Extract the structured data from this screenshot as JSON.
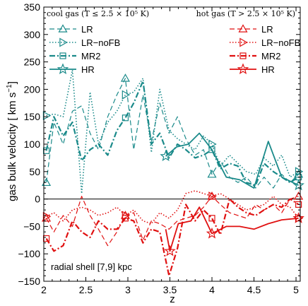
{
  "chart_data": {
    "type": "line",
    "xlabel": "z",
    "ylabel": "gas bulk velocity [ km s",
    "ylabel_sup": "−1",
    "ylabel_end": "]",
    "xlim": [
      2.0,
      5.05
    ],
    "ylim": [
      -150,
      350
    ],
    "xticks": [
      2,
      2.5,
      3,
      3.5,
      4,
      4.5,
      5
    ],
    "xtick_labels": [
      "2",
      "2.5",
      "3",
      "3.5",
      "4",
      "4.5",
      "5"
    ],
    "yticks": [
      -150,
      -100,
      -50,
      0,
      50,
      100,
      150,
      200,
      250,
      300,
      350
    ],
    "ytick_labels": [
      "−150",
      "−100",
      "−50",
      "0",
      "50",
      "100",
      "150",
      "200",
      "250",
      "300",
      "350"
    ],
    "zero_line": 0,
    "legend_cool_title": "cool gas (T ≤ 2.5 × 10⁵ K)",
    "legend_hot_title": "hot gas (T > 2.5 × 10⁵ K)",
    "annotation": "radial shell [7,9] kpc",
    "colors": {
      "cool": "#1a8a8a",
      "hot": "#e01010"
    },
    "series": [
      {
        "name": "LR",
        "group": "cool",
        "style": "dashed",
        "marker": "triangle-up",
        "x": [
          2.03,
          2.12,
          2.23,
          2.34,
          2.45,
          2.55,
          2.65,
          2.76,
          2.87,
          2.97,
          3.07,
          3.18,
          3.28,
          3.38,
          3.49,
          3.59,
          3.69,
          3.8,
          3.9,
          4.0,
          4.1,
          4.21,
          4.31,
          4.41,
          4.52,
          4.62,
          4.73,
          4.83,
          4.93,
          5.03
        ],
        "y": [
          30,
          140,
          100,
          160,
          170,
          120,
          90,
          150,
          190,
          220,
          90,
          190,
          105,
          175,
          120,
          150,
          110,
          80,
          90,
          45,
          70,
          40,
          30,
          40,
          20,
          40,
          20,
          45,
          30,
          45
        ],
        "marker_idx": [
          0,
          9,
          19,
          29
        ]
      },
      {
        "name": "LR−noFB",
        "group": "cool",
        "style": "dotted",
        "marker": "triangle-right",
        "x": [
          2.03,
          2.12,
          2.23,
          2.34,
          2.45,
          2.55,
          2.65,
          2.76,
          2.87,
          2.97,
          3.07,
          3.18,
          3.28,
          3.38,
          3.49,
          3.59,
          3.69,
          3.8,
          3.9,
          4.0,
          4.1,
          4.21,
          4.31,
          4.41,
          4.52,
          4.62,
          4.73,
          4.83,
          4.93,
          5.03
        ],
        "y": [
          152,
          155,
          150,
          235,
          10,
          195,
          100,
          140,
          160,
          190,
          195,
          220,
          85,
          200,
          125,
          110,
          100,
          90,
          115,
          100,
          60,
          80,
          65,
          50,
          45,
          75,
          60,
          80,
          40,
          50
        ],
        "marker_idx": [
          0,
          9,
          19,
          29
        ]
      },
      {
        "name": "MR2",
        "group": "cool",
        "style": "dashdot",
        "marker": "square",
        "x": [
          2.03,
          2.12,
          2.23,
          2.34,
          2.45,
          2.55,
          2.65,
          2.76,
          2.87,
          2.97,
          3.07,
          3.18,
          3.28,
          3.38,
          3.49,
          3.59,
          3.69,
          3.8,
          3.9,
          4.0,
          4.1,
          4.21,
          4.31,
          4.41,
          4.52,
          4.62,
          4.73,
          4.83,
          4.93,
          5.03
        ],
        "y": [
          88,
          150,
          115,
          140,
          70,
          90,
          100,
          80,
          125,
          148,
          175,
          215,
          100,
          120,
          75,
          100,
          90,
          75,
          80,
          90,
          55,
          65,
          60,
          30,
          25,
          65,
          50,
          40,
          30,
          40
        ],
        "marker_idx": [
          0,
          9,
          19,
          29
        ]
      },
      {
        "name": "HR",
        "group": "cool",
        "style": "solid",
        "marker": "star",
        "x": [
          3.45,
          3.58,
          3.72,
          3.85,
          4.0,
          4.17,
          4.33,
          4.5,
          4.67,
          4.83,
          5.03
        ],
        "y": [
          78,
          95,
          100,
          120,
          90,
          40,
          35,
          20,
          105,
          40,
          25
        ],
        "marker_idx": [
          0,
          10
        ]
      },
      {
        "name": "LR",
        "group": "hot",
        "style": "dashed",
        "marker": "triangle-up",
        "x": [
          2.03,
          2.12,
          2.23,
          2.34,
          2.45,
          2.55,
          2.65,
          2.76,
          2.87,
          2.97,
          3.07,
          3.18,
          3.28,
          3.38,
          3.49,
          3.59,
          3.69,
          3.8,
          3.9,
          4.0,
          4.1,
          4.21,
          4.31,
          4.41,
          4.52,
          4.62,
          4.73,
          4.83,
          4.93,
          5.03
        ],
        "y": [
          -35,
          -60,
          -30,
          -50,
          5,
          -30,
          -55,
          -85,
          -60,
          -30,
          -25,
          -75,
          -40,
          -45,
          -55,
          -40,
          -35,
          -30,
          -15,
          5,
          -10,
          -25,
          -30,
          -35,
          -10,
          -20,
          -10,
          -25,
          0,
          5
        ],
        "marker_idx": [
          0,
          9,
          19,
          29
        ]
      },
      {
        "name": "LR−noFB",
        "group": "hot",
        "style": "dotted",
        "marker": "triangle-right",
        "x": [
          2.03,
          2.12,
          2.23,
          2.34,
          2.45,
          2.55,
          2.65,
          2.76,
          2.87,
          2.97,
          3.07,
          3.18,
          3.28,
          3.38,
          3.49,
          3.59,
          3.69,
          3.8,
          3.9,
          4.0,
          4.1,
          4.21,
          4.31,
          4.41,
          4.52,
          4.62,
          4.73,
          4.83,
          4.93,
          5.03
        ],
        "y": [
          -32,
          -25,
          -40,
          -20,
          -15,
          -20,
          -30,
          -25,
          -15,
          -30,
          -20,
          -40,
          -45,
          -25,
          -35,
          -20,
          10,
          15,
          10,
          5,
          10,
          0,
          -10,
          -20,
          -15,
          -10,
          5,
          -10,
          -15,
          -35
        ],
        "marker_idx": [
          0,
          9,
          19,
          29
        ]
      },
      {
        "name": "MR2",
        "group": "hot",
        "style": "dashdot",
        "marker": "square",
        "x": [
          2.03,
          2.12,
          2.23,
          2.34,
          2.45,
          2.55,
          2.65,
          2.76,
          2.87,
          2.97,
          3.07,
          3.18,
          3.28,
          3.38,
          3.49,
          3.59,
          3.69,
          3.8,
          3.9,
          4.0,
          4.1,
          4.21,
          4.31,
          4.41,
          4.52,
          4.62,
          4.73,
          4.83,
          4.93,
          5.03
        ],
        "y": [
          -72,
          -95,
          -85,
          -40,
          -60,
          -70,
          -40,
          -55,
          -55,
          -35,
          -40,
          -80,
          -55,
          -60,
          -140,
          -90,
          -10,
          -40,
          -20,
          -35,
          -65,
          0,
          -15,
          -25,
          -30,
          -20,
          -10,
          -15,
          0,
          -10
        ],
        "marker_idx": [
          0,
          9,
          19,
          29
        ]
      },
      {
        "name": "HR",
        "group": "hot",
        "style": "solid",
        "marker": "star",
        "x": [
          3.45,
          3.5,
          3.6,
          3.75,
          3.85,
          4.0,
          4.17,
          4.33,
          4.5,
          4.67,
          4.83,
          5.03
        ],
        "y": [
          -55,
          -95,
          -45,
          -40,
          -15,
          -63,
          -50,
          -50,
          -55,
          -45,
          -38,
          -35
        ],
        "marker_idx": [
          1,
          5,
          11
        ]
      }
    ]
  }
}
